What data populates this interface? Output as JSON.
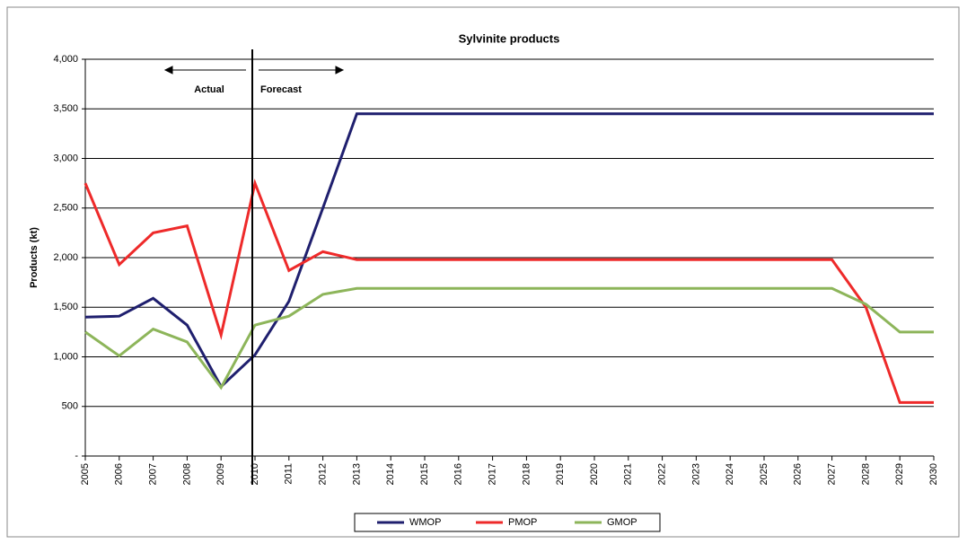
{
  "chart_data": {
    "type": "line",
    "title": "Sylvinite products",
    "y_label": "Products (kt)",
    "annotations": [
      "Actual",
      "Forecast"
    ],
    "categories": [
      "2005",
      "2006",
      "2007",
      "2008",
      "2009",
      "2010",
      "2011",
      "2012",
      "2013",
      "2014",
      "2015",
      "2016",
      "2017",
      "2018",
      "2019",
      "2020",
      "2021",
      "2022",
      "2023",
      "2024",
      "2025",
      "2026",
      "2027",
      "2028",
      "2029",
      "2030"
    ],
    "series": [
      {
        "name": "WMOP",
        "color": "#1f1f6e",
        "values": [
          1400,
          1410,
          1590,
          1320,
          700,
          1020,
          1560,
          2500,
          3450,
          3450,
          3450,
          3450,
          3450,
          3450,
          3450,
          3450,
          3450,
          3450,
          3450,
          3450,
          3450,
          3450,
          3450,
          3450,
          3450,
          3450
        ]
      },
      {
        "name": "PMOP",
        "color": "#ee2a2a",
        "values": [
          2750,
          1930,
          2250,
          2320,
          1220,
          2750,
          1870,
          2060,
          1980,
          1980,
          1980,
          1980,
          1980,
          1980,
          1980,
          1980,
          1980,
          1980,
          1980,
          1980,
          1980,
          1980,
          1980,
          1500,
          540,
          540
        ]
      },
      {
        "name": "GMOP",
        "color": "#8db55a",
        "values": [
          1250,
          1010,
          1280,
          1150,
          690,
          1320,
          1410,
          1630,
          1690,
          1690,
          1690,
          1690,
          1690,
          1690,
          1690,
          1690,
          1690,
          1690,
          1690,
          1690,
          1690,
          1690,
          1690,
          1530,
          1250,
          1250
        ]
      }
    ],
    "ylim": [
      0,
      4000
    ],
    "yticks": [
      {
        "value": 0,
        "label": "-"
      },
      500,
      {
        "value": 1000,
        "label": "1,000"
      },
      {
        "value": 1500,
        "label": "1,500"
      },
      {
        "value": 2000,
        "label": "2,000"
      },
      {
        "value": 2500,
        "label": "2,500"
      },
      {
        "value": 3000,
        "label": "3,000"
      },
      {
        "value": 3500,
        "label": "3,500"
      },
      {
        "value": 4000,
        "label": "4,000"
      }
    ],
    "grid": true,
    "legend": "bottom"
  }
}
